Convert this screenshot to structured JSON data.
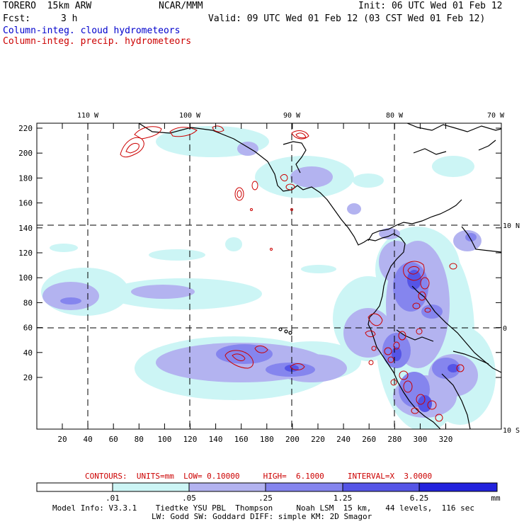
{
  "header": {
    "model": "TORERO  15km ARW",
    "org": "NCAR/MMM",
    "init": "Init: 06 UTC Wed 01 Feb 12",
    "fcst_label": "Fcst:",
    "fcst_value": "3 h",
    "valid": "Valid: 09 UTC Wed 01 Feb 12 (03 CST Wed 01 Feb 12)"
  },
  "legend": {
    "cloud": "Column-integ. cloud hydrometeors",
    "precip": "Column-integ. precip. hydrometeors"
  },
  "map": {
    "lon_labels": [
      "110 W",
      "100 W",
      "90 W",
      "80 W",
      "70 W"
    ],
    "lat_labels": [
      "10 N",
      "0",
      "10 S"
    ],
    "y_ticks": [
      "220",
      "200",
      "180",
      "160",
      "140",
      "120",
      "100",
      "80",
      "60",
      "40",
      "20"
    ],
    "x_ticks": [
      "20",
      "40",
      "60",
      "80",
      "100",
      "120",
      "140",
      "160",
      "180",
      "200",
      "220",
      "240",
      "260",
      "280",
      "300",
      "320"
    ]
  },
  "contour_info": {
    "text": "CONTOURS:  UNITS=mm  LOW= 0.10000     HIGH=  6.1000     INTERVAL=X  3.0000"
  },
  "colorbar": {
    "labels": [
      ".01",
      ".05",
      ".25",
      "1.25",
      "6.25"
    ],
    "unit": "mm",
    "colors": [
      "#ffffff",
      "#ccf5f5",
      "#b3b3f0",
      "#8585ee",
      "#5555e6",
      "#2222dd"
    ]
  },
  "footer": {
    "line1": "Model Info: V3.3.1    Tiedtke YSU PBL  Thompson     Noah LSM  15 km,   44 levels,  116 sec",
    "line2": "LW: Godd SW: Goddard DIFF: simple KM: 2D Smagor"
  }
}
